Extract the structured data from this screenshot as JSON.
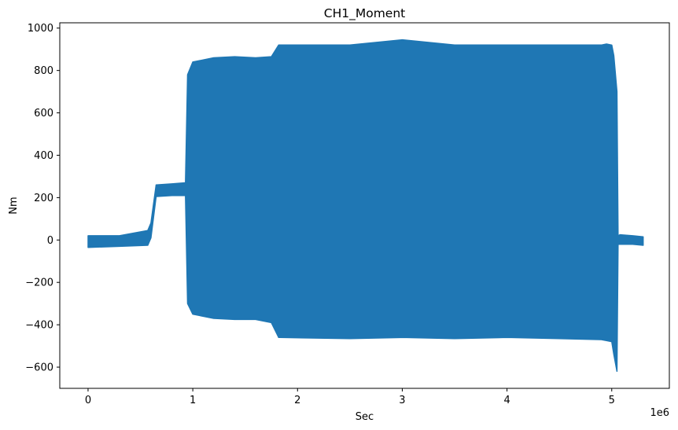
{
  "chart_data": {
    "type": "area",
    "title": "CH1_Moment",
    "xlabel": "Sec",
    "ylabel": "Nm",
    "x_offset_label": "1e6",
    "xlim": [
      -0.27,
      5.55
    ],
    "ylim": [
      -700,
      1025
    ],
    "x_ticks": [
      0,
      1,
      2,
      3,
      4,
      5
    ],
    "x_tick_labels": [
      "0",
      "1",
      "2",
      "3",
      "4",
      "5"
    ],
    "y_ticks": [
      -600,
      -400,
      -200,
      0,
      200,
      400,
      600,
      800,
      1000
    ],
    "y_tick_labels": [
      "−600",
      "−400",
      "−200",
      "0",
      "200",
      "400",
      "600",
      "800",
      "1000"
    ],
    "grid": false,
    "series": [
      {
        "color": "#1f77b4",
        "x": [
          0,
          0.3,
          0.57,
          0.6,
          0.65,
          0.8,
          0.93,
          0.95,
          1.0,
          1.2,
          1.4,
          1.6,
          1.75,
          1.82,
          1.83,
          2.5,
          3.0,
          3.5,
          4.0,
          4.5,
          4.9,
          4.95,
          5.0,
          5.02,
          5.05,
          5.06,
          5.08,
          5.2,
          5.3
        ],
        "y_max": [
          20,
          20,
          45,
          80,
          260,
          265,
          270,
          780,
          840,
          860,
          865,
          860,
          865,
          920,
          920,
          920,
          945,
          920,
          920,
          920,
          920,
          925,
          920,
          870,
          700,
          20,
          25,
          20,
          15
        ],
        "y_min": [
          -35,
          -30,
          -25,
          10,
          205,
          210,
          210,
          -300,
          -350,
          -370,
          -375,
          -375,
          -390,
          -460,
          -460,
          -465,
          -460,
          -465,
          -460,
          -465,
          -470,
          -475,
          -480,
          -540,
          -620,
          -20,
          -20,
          -20,
          -25
        ]
      }
    ]
  }
}
